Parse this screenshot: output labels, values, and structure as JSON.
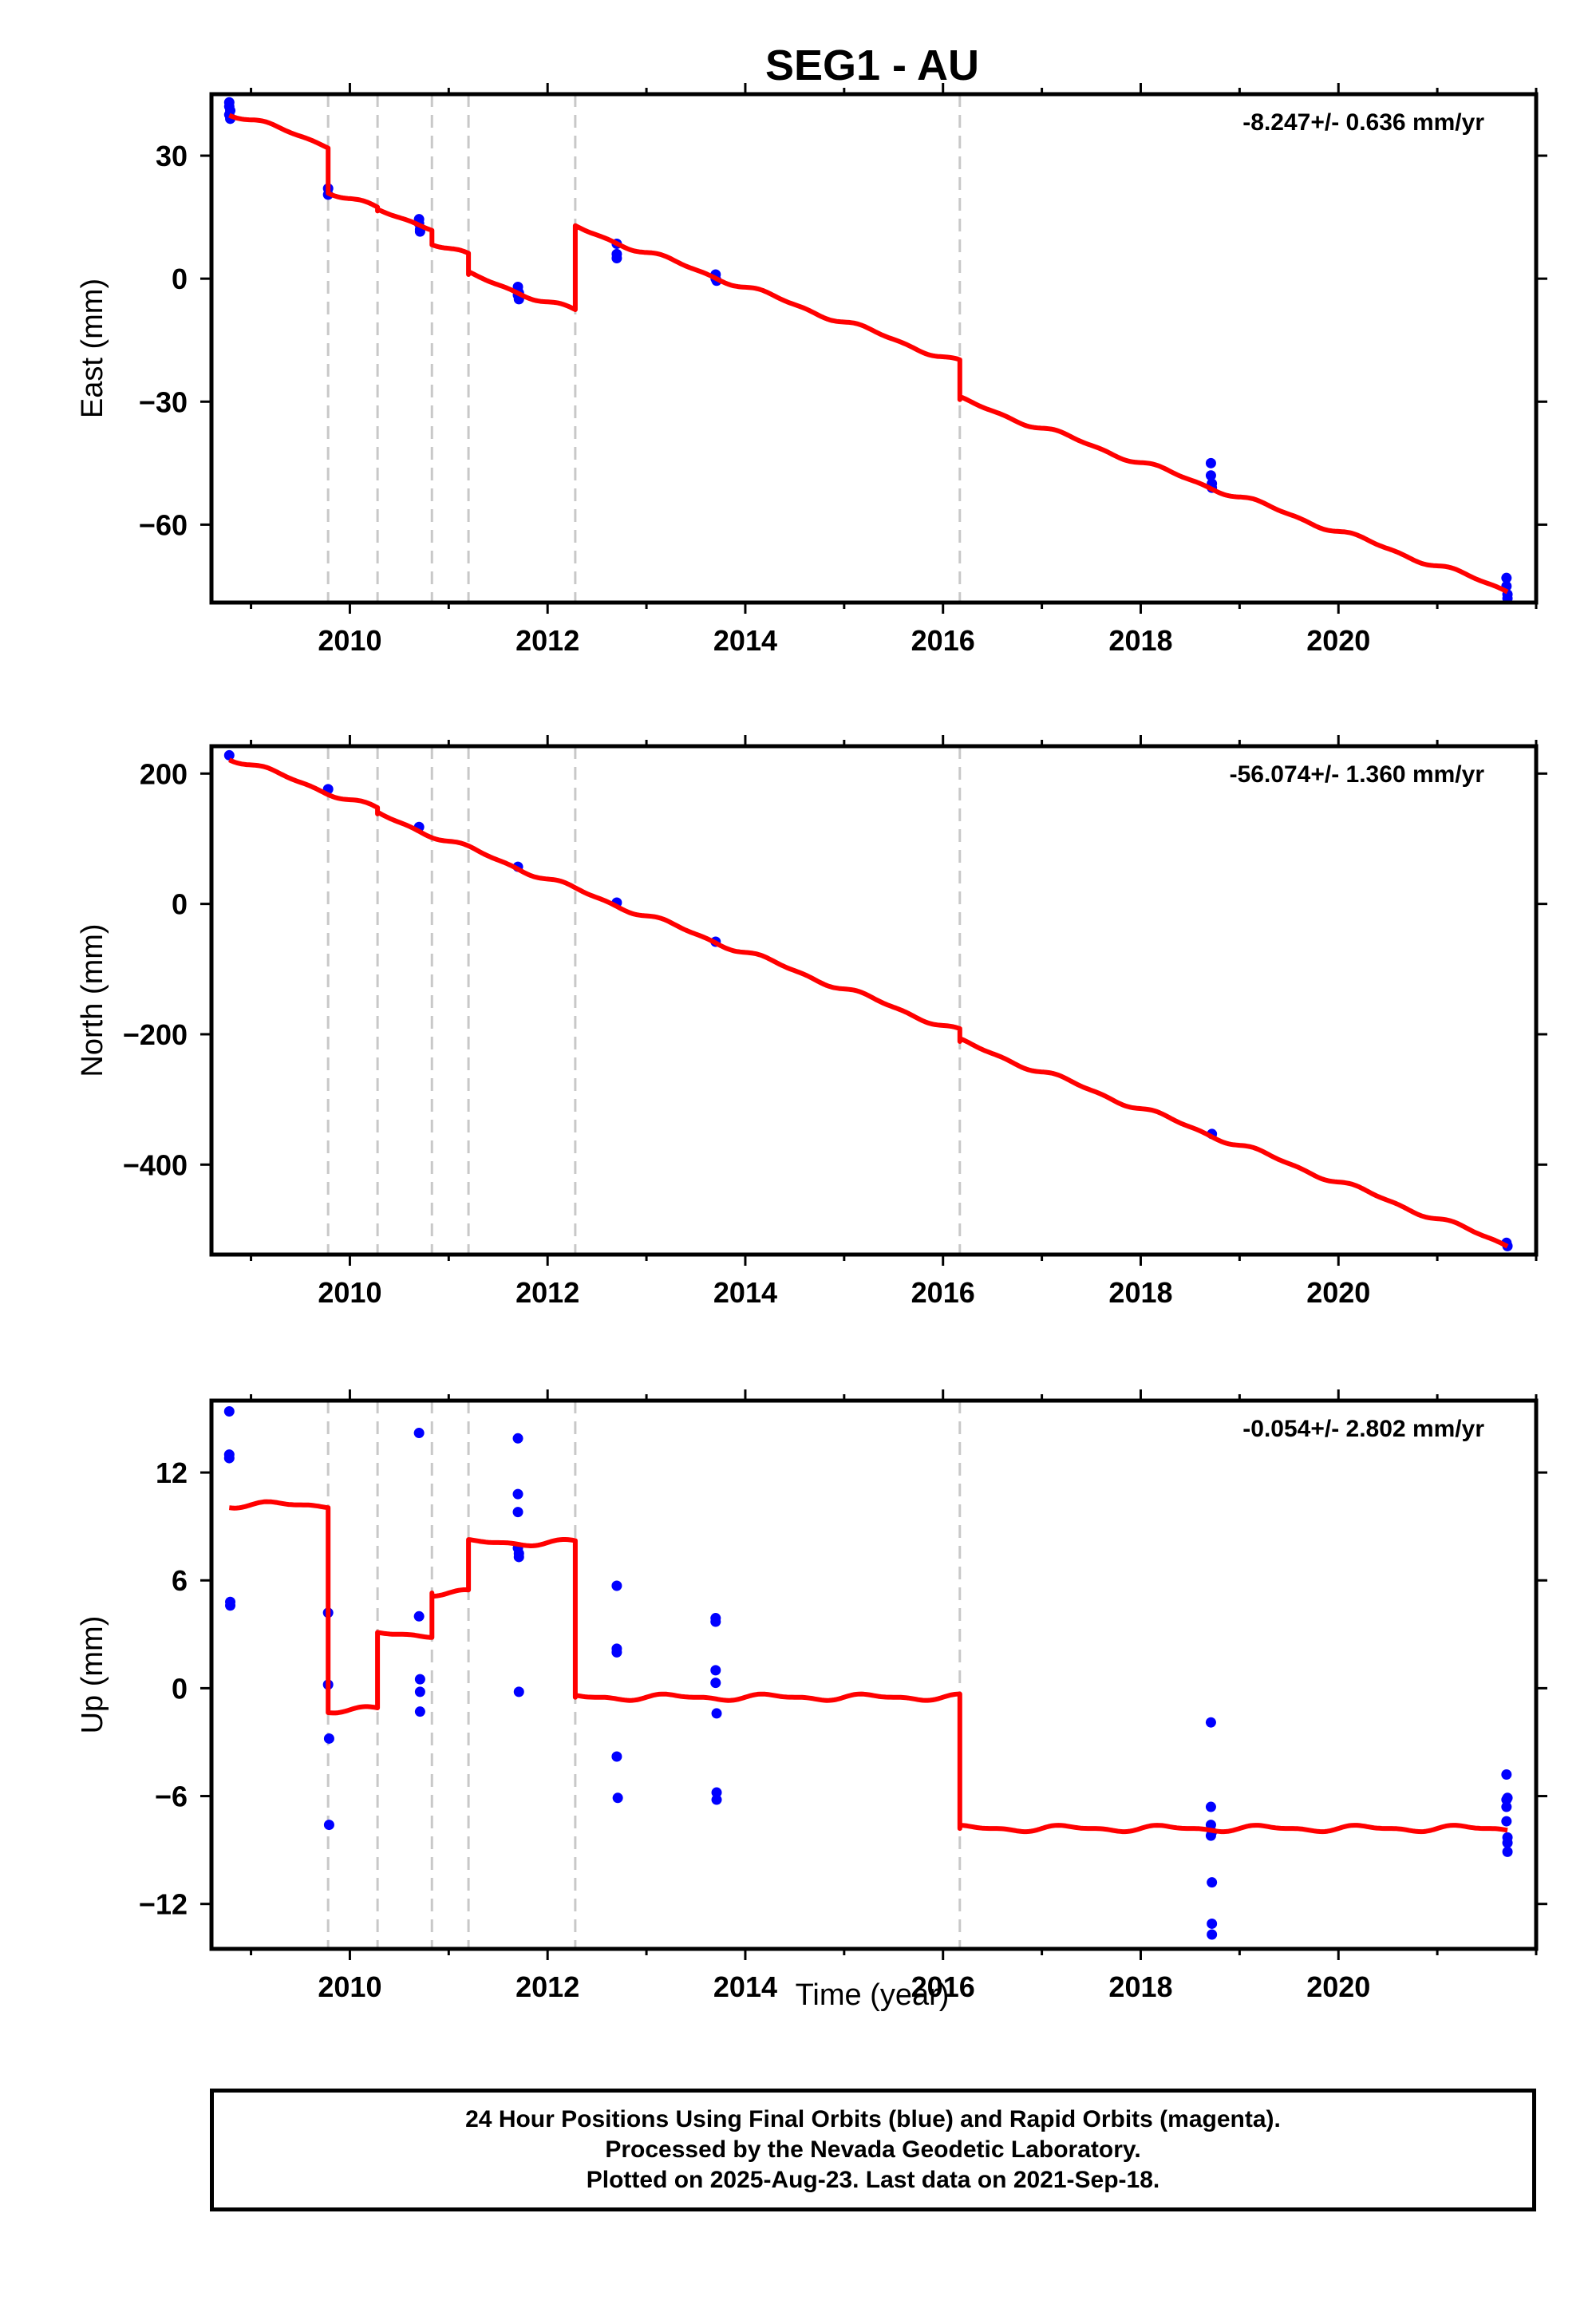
{
  "title": "SEG1 - AU",
  "xlabel": "Time (year)",
  "footer": {
    "line1": "24 Hour Positions Using Final Orbits (blue) and Rapid Orbits (magenta).",
    "line2": "Processed by the Nevada Geodetic Laboratory.",
    "line3": "Plotted on 2025-Aug-23. Last data on 2021-Sep-18."
  },
  "colors": {
    "model": "#ff0000",
    "final_orbits": "#0000ff",
    "breaks": "#c8c8c8",
    "axes": "#000000"
  },
  "chart_data": [
    {
      "type": "scatter",
      "ylabel": "East (mm)",
      "rate_label": "-8.247+/- 0.636 mm/yr",
      "xlim": [
        2008.6,
        2022.0
      ],
      "ylim": [
        -79,
        45
      ],
      "x_ticks": [
        2010,
        2012,
        2014,
        2016,
        2018,
        2020
      ],
      "y_ticks": [
        30,
        0,
        -30,
        -60
      ],
      "breaks": [
        2009.78,
        2010.28,
        2010.83,
        2011.2,
        2012.28,
        2016.17
      ],
      "series": [
        {
          "kind": "points",
          "x": [
            2008.78,
            2008.78,
            2008.78,
            2008.79,
            2008.79,
            2009.78,
            2009.78,
            2010.7,
            2010.7,
            2010.71,
            2010.71,
            2011.7,
            2011.7,
            2011.7,
            2011.71,
            2011.71,
            2012.7,
            2012.7,
            2012.7,
            2013.7,
            2013.7,
            2013.71,
            2018.71,
            2018.71,
            2018.72,
            2018.72,
            2021.7,
            2021.7,
            2021.71,
            2021.71
          ],
          "y": [
            43,
            42,
            40,
            39,
            41,
            22,
            20.5,
            14.5,
            13.5,
            12,
            11.5,
            -2,
            -3,
            -4,
            -5,
            -3.5,
            8.5,
            6,
            5,
            1,
            0,
            -0.5,
            -45,
            -48,
            -50,
            -51,
            -73,
            -75,
            -77,
            -78
          ]
        },
        {
          "kind": "model",
          "x": [
            2008.78,
            2009.78,
            2009.78,
            2010.28,
            2010.28,
            2010.83,
            2010.83,
            2011.2,
            2011.2,
            2012.28,
            2012.28,
            2016.17,
            2016.17,
            2021.71
          ],
          "y": [
            40.5,
            32.5,
            21.5,
            17,
            16.5,
            12.5,
            9,
            5.5,
            1,
            -8,
            12.5,
            -20.5,
            -29.5,
            -76
          ]
        }
      ]
    },
    {
      "type": "scatter",
      "ylabel": "North (mm)",
      "rate_label": "-56.074+/- 1.360 mm/yr",
      "xlim": [
        2008.6,
        2022.0
      ],
      "ylim": [
        -538,
        242
      ],
      "x_ticks": [
        2010,
        2012,
        2014,
        2016,
        2018,
        2020
      ],
      "y_ticks": [
        200,
        0,
        -200,
        -400
      ],
      "breaks": [
        2009.78,
        2010.28,
        2010.83,
        2011.2,
        2012.28,
        2016.17
      ],
      "series": [
        {
          "kind": "points",
          "x": [
            2008.78,
            2009.78,
            2010.7,
            2011.7,
            2012.7,
            2013.7,
            2018.72,
            2021.7,
            2021.71
          ],
          "y": [
            228,
            176,
            118,
            57,
            2,
            -58,
            -353,
            -520,
            -525
          ]
        },
        {
          "kind": "model",
          "x": [
            2008.78,
            2010.28,
            2010.28,
            2012.28,
            2016.17,
            2016.17,
            2021.71
          ],
          "y": [
            225,
            145,
            138,
            22,
            -196,
            -211,
            -523
          ]
        }
      ]
    },
    {
      "type": "scatter",
      "ylabel": "Up (mm)",
      "rate_label": "-0.054+/- 2.802 mm/yr",
      "xlim": [
        2008.6,
        2022.0
      ],
      "ylim": [
        -14.5,
        16
      ],
      "x_ticks": [
        2010,
        2012,
        2014,
        2016,
        2018,
        2020
      ],
      "y_ticks": [
        12,
        6,
        0,
        -6,
        -12
      ],
      "breaks": [
        2009.78,
        2010.28,
        2010.83,
        2011.2,
        2012.28,
        2016.17
      ],
      "series": [
        {
          "kind": "points",
          "x": [
            2008.78,
            2008.78,
            2008.78,
            2008.79,
            2008.79,
            2009.78,
            2009.78,
            2009.79,
            2009.79,
            2010.7,
            2010.7,
            2010.71,
            2010.71,
            2010.71,
            2011.7,
            2011.7,
            2011.7,
            2011.7,
            2011.71,
            2011.71,
            2011.71,
            2012.7,
            2012.7,
            2012.7,
            2012.7,
            2012.71,
            2013.7,
            2013.7,
            2013.7,
            2013.7,
            2013.71,
            2013.71,
            2013.71,
            2018.71,
            2018.71,
            2018.71,
            2018.71,
            2018.72,
            2018.72,
            2018.72,
            2018.72,
            2021.7,
            2021.7,
            2021.7,
            2021.7,
            2021.71,
            2021.71,
            2021.71,
            2021.71
          ],
          "y": [
            15.4,
            13,
            12.8,
            4.8,
            4.6,
            4.2,
            0.2,
            -2.8,
            -7.6,
            14.2,
            4,
            0.5,
            -0.2,
            -1.3,
            13.9,
            10.8,
            9.8,
            7.8,
            7.5,
            7.3,
            -0.2,
            5.7,
            2.2,
            2,
            -3.8,
            -6.1,
            3.9,
            3.7,
            1,
            0.3,
            -1.4,
            -5.8,
            -6.2,
            -1.9,
            -6.6,
            -7.6,
            -8.2,
            -10.8,
            -13.1,
            -13.7,
            -8,
            -4.8,
            -6.2,
            -6.6,
            -7.4,
            -8.3,
            -8.6,
            -9.1,
            -6.1
          ],
          "kind_note": ""
        },
        {
          "kind": "model",
          "x": [
            2008.78,
            2009.78,
            2009.78,
            2010.28,
            2010.28,
            2010.83,
            2010.83,
            2011.2,
            2011.2,
            2012.28,
            2012.28,
            2016.17,
            2016.17,
            2021.71
          ],
          "y": [
            10.2,
            10.2,
            -1.2,
            -1.2,
            3,
            3,
            5.3,
            5.3,
            8.1,
            8.1,
            -0.5,
            -0.5,
            -7.8,
            -7.8
          ]
        }
      ]
    }
  ]
}
